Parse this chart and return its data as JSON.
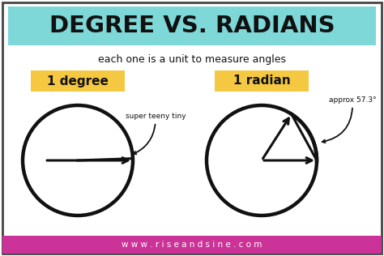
{
  "title": "DEGREE VS. RADIANS",
  "subtitle": "each one is a unit to measure angles",
  "label_degree": "1 degree",
  "label_radian": "1 radian",
  "note_degree": "super teeny tiny",
  "note_radian": "approx 57.3°",
  "website": "w w w . r i s e a n d s i n e . c o m",
  "bg_color": "#ffffff",
  "title_bg_color": "#7ed8d8",
  "label_bg_color": "#f5c842",
  "footer_bg_color": "#cc3399",
  "footer_text_color": "#ffffff",
  "border_color": "#444444",
  "text_color": "#111111",
  "circle_color": "#111111",
  "arrow_color": "#111111"
}
